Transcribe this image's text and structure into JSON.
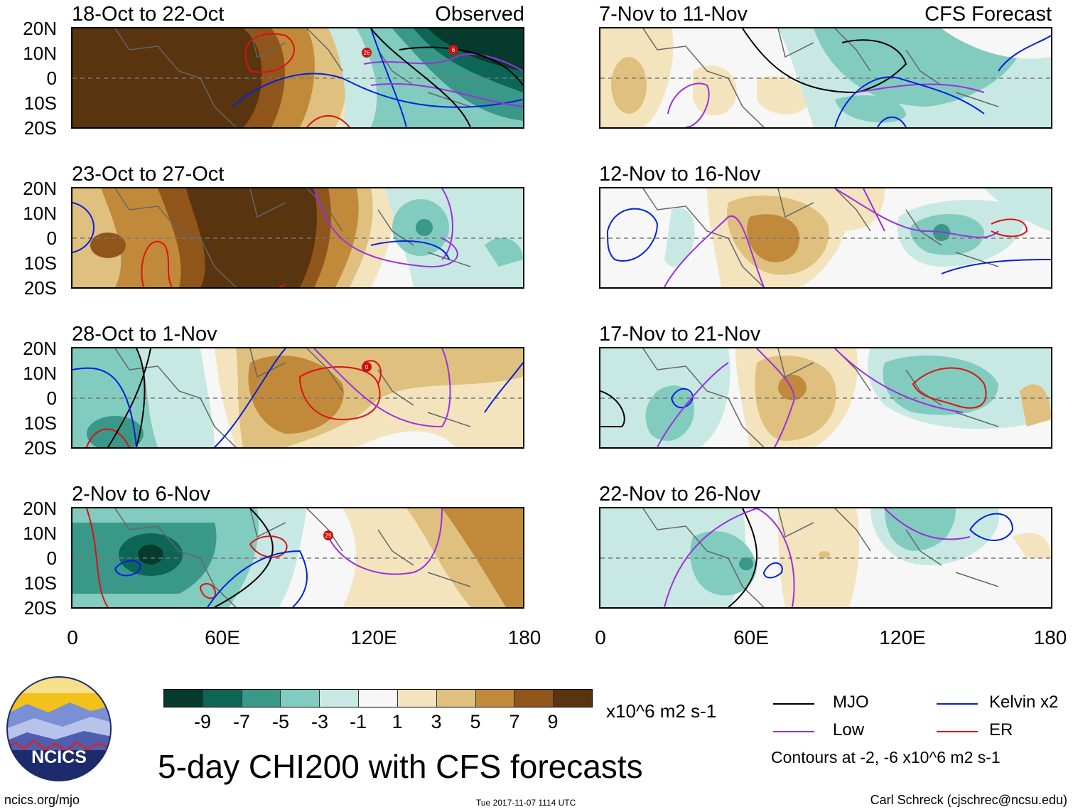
{
  "observed_label": "Observed",
  "forecast_label": "CFS Forecast",
  "panels_left": [
    {
      "title": "18-Oct to 22-Oct"
    },
    {
      "title": "23-Oct to 27-Oct"
    },
    {
      "title": "28-Oct to 1-Nov"
    },
    {
      "title": "2-Nov to 6-Nov"
    }
  ],
  "panels_right": [
    {
      "title": "7-Nov to 11-Nov"
    },
    {
      "title": "12-Nov to 16-Nov"
    },
    {
      "title": "17-Nov to 21-Nov"
    },
    {
      "title": "22-Nov to 26-Nov"
    }
  ],
  "lat_labels": [
    "20N",
    "10N",
    "0",
    "10S",
    "20S"
  ],
  "lon_labels": [
    "0",
    "60E",
    "120E",
    "180"
  ],
  "colorbar": {
    "colors": [
      "#063a2c",
      "#0d6556",
      "#3a9888",
      "#82cbbf",
      "#c8e9e3",
      "#f7f7f7",
      "#f4e4bd",
      "#dfc07e",
      "#c18a3a",
      "#8f551a",
      "#58340f"
    ],
    "tick_labels": [
      "-9",
      "-7",
      "-5",
      "-3",
      "-1",
      "1",
      "3",
      "5",
      "7",
      "9"
    ],
    "units": "x10^6 m2 s-1"
  },
  "title": "5-day CHI200 with CFS forecasts",
  "legend": {
    "items": [
      {
        "label": "MJO",
        "color": "#000000"
      },
      {
        "label": "Kelvin x2",
        "color": "#0022dd"
      },
      {
        "label": "Low",
        "color": "#9b30e0"
      },
      {
        "label": "ER",
        "color": "#dd1111"
      }
    ],
    "contours_note": "Contours at -2, -6 x10^6 m2 s-1"
  },
  "logo_text": "NCICS",
  "footer": {
    "left": "ncics.org/mjo",
    "center": "Tue 2017-11-07 1114 UTC",
    "right": "Carl Schreck (cjschrec@ncsu.edu)"
  },
  "storm_markers": [
    "26",
    "6",
    "0",
    "29"
  ]
}
